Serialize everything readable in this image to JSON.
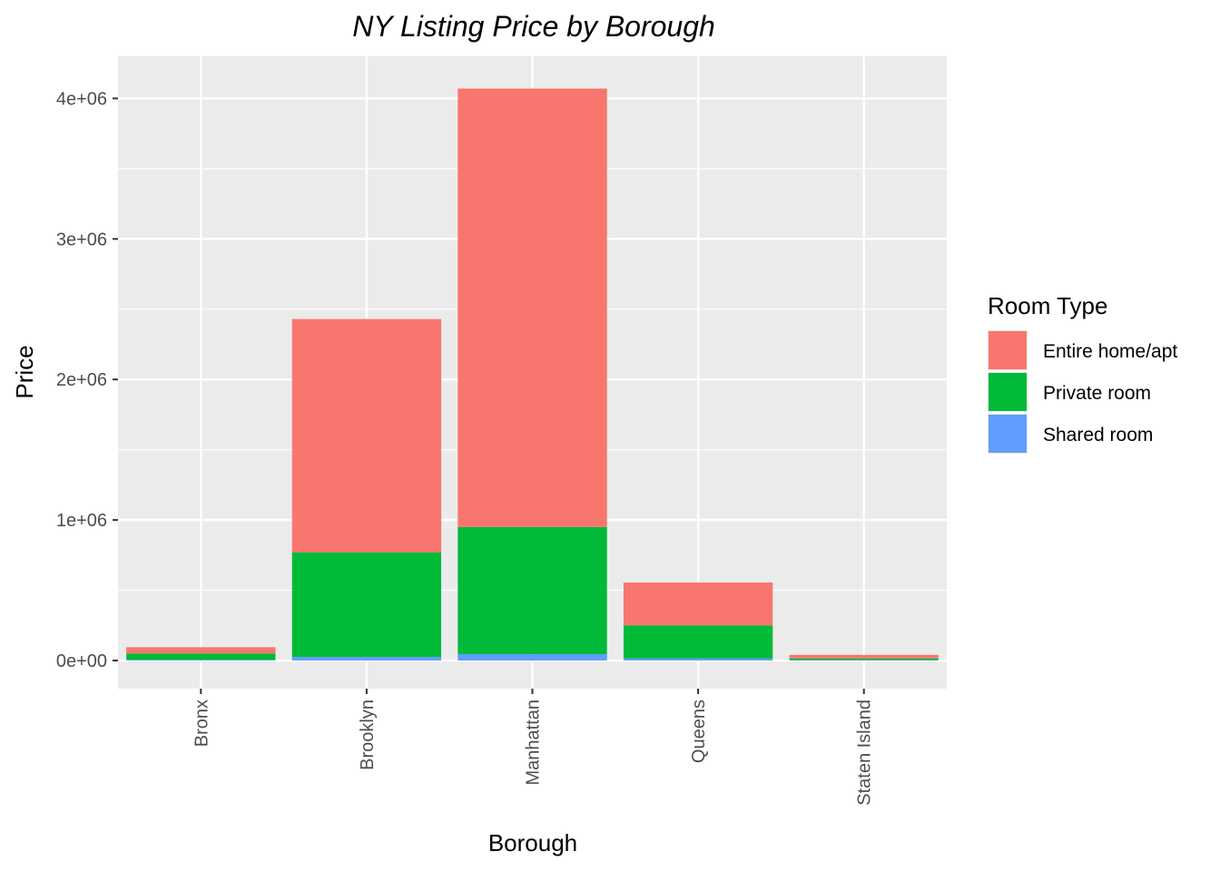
{
  "chart_data": {
    "type": "bar",
    "stacked": true,
    "title": "NY Listing Price by Borough",
    "xlabel": "Borough",
    "ylabel": "Price",
    "categories": [
      "Bronx",
      "Brooklyn",
      "Manhattan",
      "Queens",
      "Staten Island"
    ],
    "series": [
      {
        "name": "Shared room",
        "values": [
          5000,
          25000,
          45000,
          15000,
          3000
        ]
      },
      {
        "name": "Private room",
        "values": [
          45000,
          745000,
          905000,
          235000,
          12000
        ]
      },
      {
        "name": "Entire home/apt",
        "values": [
          45000,
          1660000,
          3120000,
          305000,
          25000
        ]
      }
    ],
    "ylim": [
      -200000,
      4300000
    ],
    "yticks": [
      0,
      1000000,
      2000000,
      3000000,
      4000000
    ],
    "ytick_labels": [
      "0e+00",
      "1e+06",
      "2e+06",
      "3e+06",
      "4e+06"
    ],
    "grid": true,
    "legend": {
      "title": "Room Type",
      "position": "right",
      "entries": [
        "Entire home/apt",
        "Private room",
        "Shared room"
      ]
    },
    "colors": {
      "Entire home/apt": "#F8766D",
      "Private room": "#00BA38",
      "Shared room": "#619CFF",
      "panel": "#EBEBEB",
      "grid": "#FFFFFF"
    }
  }
}
